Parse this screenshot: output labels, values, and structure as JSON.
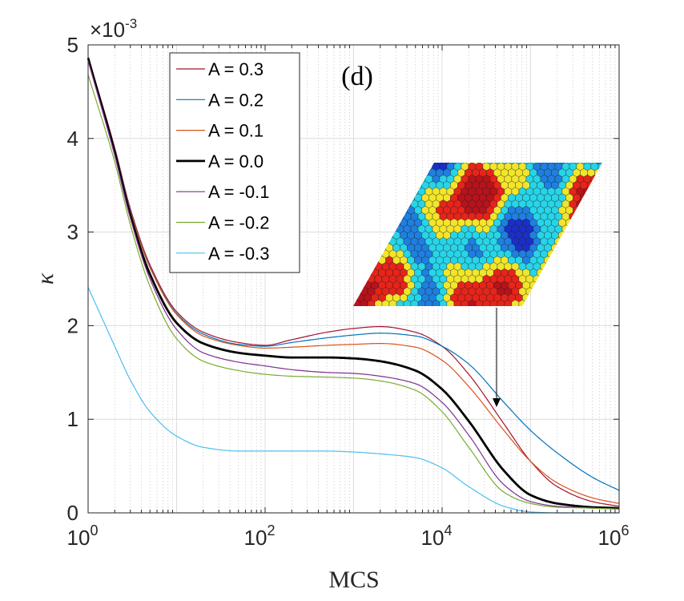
{
  "chart_data": {
    "type": "line",
    "panel_label": "(d)",
    "xlabel": "MCS",
    "ylabel": "κ",
    "xscale": "log",
    "xlim": [
      1,
      1000000
    ],
    "ylim": [
      0,
      0.005
    ],
    "y_exponent_label": "×10",
    "y_exponent_power": "-3",
    "x_tick_base": "10",
    "x_ticks": [
      {
        "value": 1,
        "power": "0"
      },
      {
        "value": 100,
        "power": "2"
      },
      {
        "value": 10000,
        "power": "4"
      },
      {
        "value": 1000000,
        "power": "6"
      }
    ],
    "y_ticks": [
      {
        "value": 0,
        "label": "0"
      },
      {
        "value": 0.001,
        "label": "1"
      },
      {
        "value": 0.002,
        "label": "2"
      },
      {
        "value": 0.003,
        "label": "3"
      },
      {
        "value": 0.004,
        "label": "4"
      },
      {
        "value": 0.005,
        "label": "5"
      }
    ],
    "grid": true,
    "legend_position": "top-left",
    "annotation": "inset snapshot of hexagonal lattice with arrow pointing to curve near MCS ≈ 4×10^4",
    "x": [
      1,
      2,
      3,
      5,
      10,
      20,
      50,
      100,
      200,
      500,
      1000,
      2000,
      5000,
      10000,
      20000,
      50000,
      100000,
      200000,
      500000,
      1000000
    ],
    "series": [
      {
        "name": "A = 0.3",
        "color": "#a2142f",
        "values": [
          0.00487,
          0.0039,
          0.00325,
          0.00265,
          0.00215,
          0.00193,
          0.00182,
          0.00179,
          0.00185,
          0.00193,
          0.00197,
          0.00199,
          0.00193,
          0.00178,
          0.00148,
          0.00095,
          0.00055,
          0.00028,
          0.00012,
          7e-05
        ]
      },
      {
        "name": "A = 0.2",
        "color": "#0072bd",
        "values": [
          0.00485,
          0.00388,
          0.00323,
          0.00263,
          0.00213,
          0.00191,
          0.0018,
          0.00178,
          0.00182,
          0.00187,
          0.0019,
          0.00192,
          0.00189,
          0.00178,
          0.00159,
          0.00118,
          0.00088,
          0.00064,
          0.00038,
          0.00024
        ]
      },
      {
        "name": "A = 0.1",
        "color": "#d95319",
        "values": [
          0.00484,
          0.00387,
          0.00322,
          0.00262,
          0.00212,
          0.00189,
          0.00179,
          0.00176,
          0.00177,
          0.00179,
          0.0018,
          0.00181,
          0.00177,
          0.00163,
          0.00135,
          0.00088,
          0.00055,
          0.00032,
          0.00016,
          0.0001
        ]
      },
      {
        "name": "A = 0.0",
        "color": "#000000",
        "values": [
          0.00486,
          0.00385,
          0.00318,
          0.00255,
          0.00203,
          0.00181,
          0.00171,
          0.00168,
          0.00166,
          0.00166,
          0.00165,
          0.00162,
          0.00152,
          0.00132,
          0.00098,
          0.00045,
          0.00019,
          0.0001,
          6e-05,
          5e-05
        ]
      },
      {
        "name": "A = -0.1",
        "color": "#7e2f8e",
        "values": [
          0.00483,
          0.00382,
          0.00315,
          0.0025,
          0.00196,
          0.00171,
          0.00161,
          0.00157,
          0.00153,
          0.0015,
          0.00149,
          0.00146,
          0.00138,
          0.00118,
          0.00083,
          0.0003,
          0.00012,
          7e-05,
          5e-05,
          4e-05
        ]
      },
      {
        "name": "A = -0.2",
        "color": "#77ac30",
        "values": [
          0.00468,
          0.00375,
          0.00308,
          0.00242,
          0.00186,
          0.00162,
          0.00152,
          0.00148,
          0.00146,
          0.00145,
          0.00144,
          0.00141,
          0.00131,
          0.00108,
          0.0007,
          0.00022,
          0.0001,
          6e-05,
          5e-05,
          4e-05
        ]
      },
      {
        "name": "A = -0.3",
        "color": "#4dbeee",
        "values": [
          0.00241,
          0.00178,
          0.00142,
          0.00108,
          0.00082,
          0.0007,
          0.00066,
          0.00066,
          0.00066,
          0.00066,
          0.00065,
          0.00063,
          0.00059,
          0.00048,
          0.00028,
          7e-05,
          1e-05,
          0.0,
          0.0,
          0.0
        ]
      }
    ],
    "inset": {
      "description": "hexagonal lattice colormap snapshot",
      "colors": [
        "#1a2fc8",
        "#1f7fe0",
        "#27d4e8",
        "#f2e52a",
        "#e6241a",
        "#b8121a"
      ]
    }
  }
}
